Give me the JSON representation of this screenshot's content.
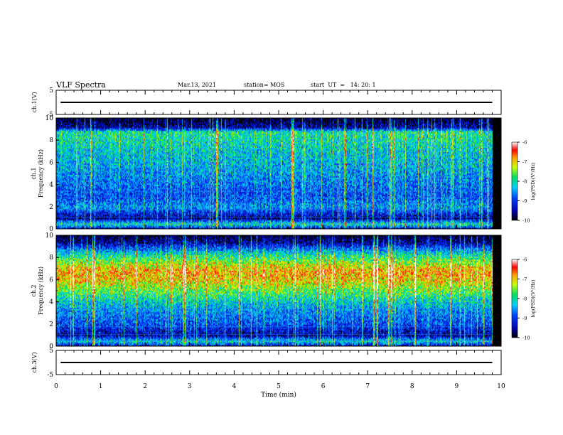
{
  "header": {
    "title": "VLF Spectra",
    "date": "Mar.13, 2021",
    "station": "station= MOS",
    "start_ut": "start  UT  =   14: 20: 1"
  },
  "chart_data": [
    {
      "type": "line",
      "panel": "ch1-waveform",
      "ylabel": "ch.1(V)",
      "ylim": [
        -5,
        5
      ],
      "yticks": [
        "5",
        "-5"
      ],
      "xlim": [
        0,
        10
      ],
      "series": [
        {
          "x": [
            0.1,
            9.8
          ],
          "values": [
            0,
            0
          ]
        }
      ]
    },
    {
      "type": "heatmap",
      "panel": "ch1-spectrogram",
      "ylabel_lines": [
        "ch.1",
        "Frequency (kHz)"
      ],
      "ylim": [
        0,
        10
      ],
      "yticks": [
        "0",
        "2",
        "4",
        "6",
        "8",
        "10"
      ],
      "xlim": [
        0,
        10
      ],
      "colorbar": {
        "label": "log(PSD)(V²/Hz)",
        "range": [
          -10,
          -6
        ],
        "ticks": [
          "-6",
          "-7",
          "-8",
          "-9",
          "-10"
        ]
      },
      "profile": {
        "freq_khz": [
          0,
          0.5,
          1,
          2,
          3,
          4,
          5,
          6,
          7,
          8,
          8.8,
          9.2,
          10
        ],
        "level": [
          -9.6,
          -8.0,
          -9.7,
          -8.6,
          -9.0,
          -8.8,
          -8.6,
          -8.4,
          -8.3,
          -8.1,
          -8.0,
          -9.6,
          -10.0
        ]
      }
    },
    {
      "type": "heatmap",
      "panel": "ch2-spectrogram",
      "ylabel_lines": [
        "ch.2",
        "Frequency (kHz)"
      ],
      "ylim": [
        0,
        10
      ],
      "yticks": [
        "0",
        "2",
        "4",
        "6",
        "8",
        "10"
      ],
      "xlim": [
        0,
        10
      ],
      "colorbar": {
        "label": "log(PSD)(V²/Hz)",
        "range": [
          -10,
          -6
        ],
        "ticks": [
          "-6",
          "-7",
          "-8",
          "-9",
          "-10"
        ]
      },
      "profile": {
        "freq_khz": [
          0,
          0.5,
          1,
          2,
          3,
          4,
          5,
          6,
          6.8,
          7.5,
          8.5,
          9.3,
          10
        ],
        "level": [
          -9.6,
          -8.2,
          -9.6,
          -9.0,
          -8.7,
          -8.3,
          -7.7,
          -7.1,
          -6.9,
          -7.4,
          -8.3,
          -9.5,
          -10.0
        ]
      }
    },
    {
      "type": "line",
      "panel": "ch3-waveform",
      "ylabel": "ch.3(V)",
      "ylim": [
        -5,
        5
      ],
      "yticks": [
        "5",
        "-5"
      ],
      "xlim": [
        0,
        10
      ],
      "xlabel": "Time  (min)",
      "xticks": [
        "0",
        "1",
        "2",
        "3",
        "4",
        "5",
        "6",
        "7",
        "8",
        "9",
        "10"
      ],
      "series": [
        {
          "x": [
            0.1,
            9.8
          ],
          "values": [
            0,
            0
          ]
        }
      ]
    }
  ]
}
